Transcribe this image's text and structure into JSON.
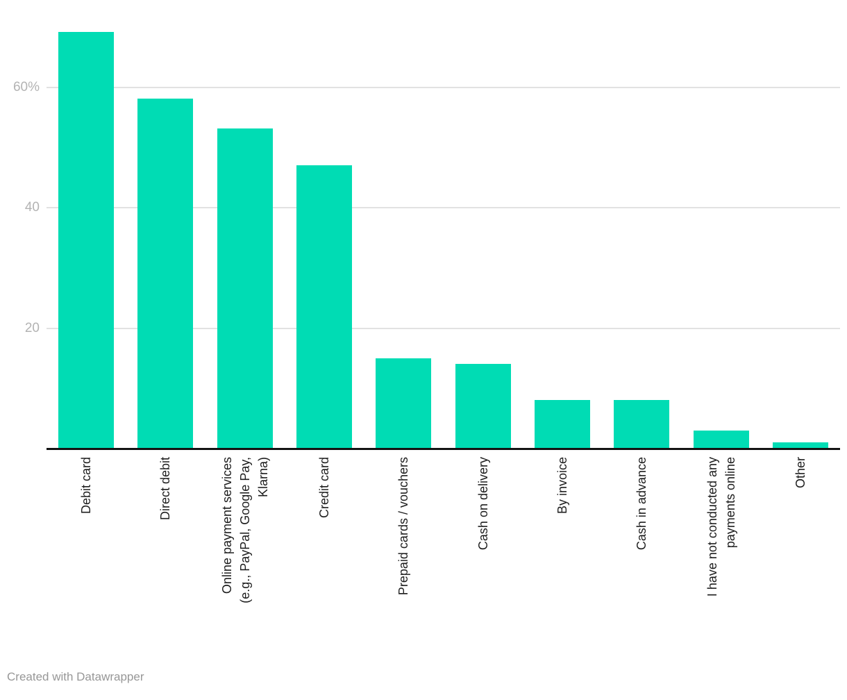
{
  "chart_data": {
    "type": "bar",
    "title": "",
    "xlabel": "",
    "ylabel": "",
    "unit": "%",
    "categories": [
      "Debit card",
      "Direct debit",
      "Online payment services (e.g., PayPal, Google Pay, Klarna)",
      "Credit card",
      "Prepaid cards / vouchers",
      "Cash on delivery",
      "By invoice",
      "Cash in advance",
      "I have not conducted any payments online",
      "Other"
    ],
    "category_lines": [
      [
        "Debit card"
      ],
      [
        "Direct debit"
      ],
      [
        "Online payment services",
        "(e.g., PayPal, Google Pay,",
        "Klarna)"
      ],
      [
        "Credit card"
      ],
      [
        "Prepaid cards / vouchers"
      ],
      [
        "Cash on delivery"
      ],
      [
        "By invoice"
      ],
      [
        "Cash in advance"
      ],
      [
        "I have not conducted any",
        "payments online"
      ],
      [
        "Other"
      ]
    ],
    "values": [
      69,
      58,
      53,
      47,
      15,
      14,
      8,
      8,
      3,
      1
    ],
    "y_ticks": [
      {
        "value": 20,
        "label": "20"
      },
      {
        "value": 40,
        "label": "40"
      },
      {
        "value": 60,
        "label": "60%"
      }
    ],
    "ylim": [
      0,
      74
    ],
    "grid": true,
    "legend": "none",
    "bar_color": "#00dcb4"
  },
  "colors": {
    "background": "#ffffff",
    "bar": "#00dcb4",
    "gridline": "#e2e2e2",
    "axis_line": "#131313",
    "ytick_label": "#b3b3b3",
    "xtick_label": "#1d1d1d",
    "credit_text": "#979797"
  },
  "footer": {
    "credit": "Created with Datawrapper"
  }
}
